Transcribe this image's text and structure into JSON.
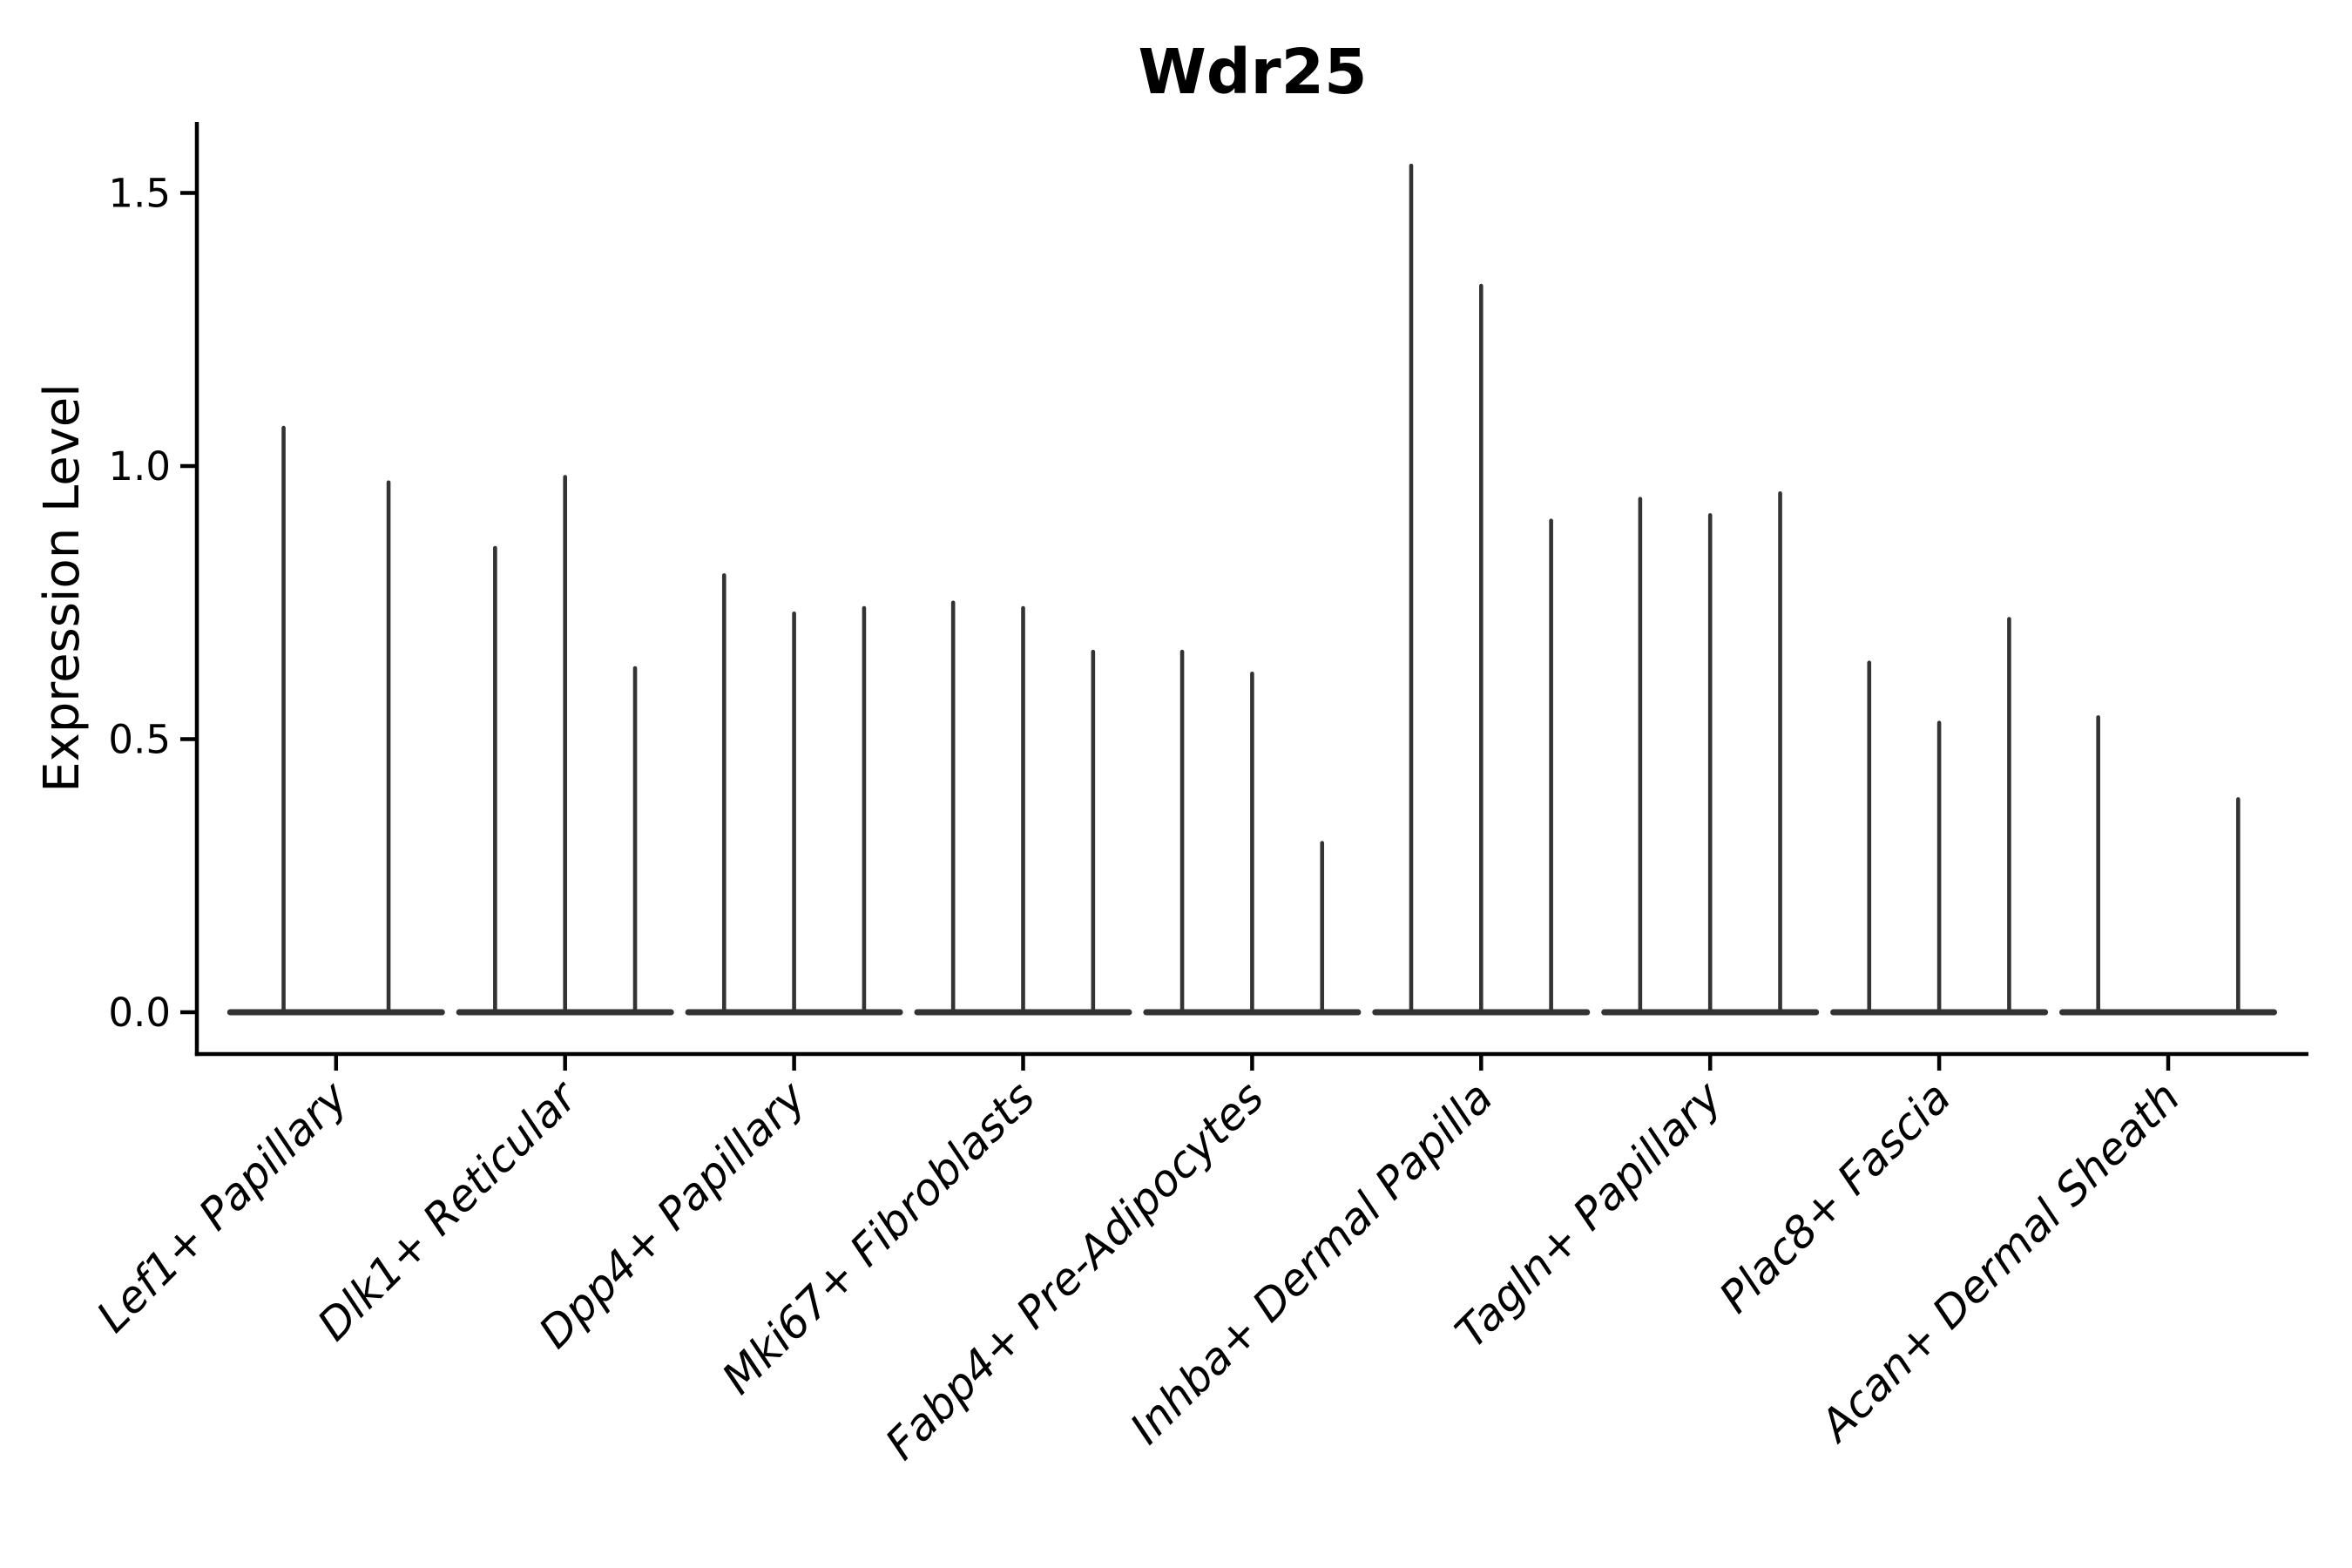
{
  "page": {
    "background": "#ffffff"
  },
  "chart_data": {
    "type": "violin",
    "title": "Wdr25",
    "xlabel": "",
    "ylabel": "Expression Level",
    "yticks": [
      "0.0",
      "0.5",
      "1.0",
      "1.5"
    ],
    "ytick_values": [
      0.0,
      0.5,
      1.0,
      1.5
    ],
    "ylim": [
      -0.08,
      1.63
    ],
    "grid": false,
    "legend_position": "none",
    "background_color": "#ffffff",
    "text_color": "#000000",
    "axis_color": "#000000",
    "violin_color": "#333333",
    "categories": [
      "Lef1+ Papillary",
      "Dlk1+ Reticular",
      "Dpp4+ Papillary",
      "Mki67+ Fibroblasts",
      "Fabp4+ Pre-Adipocytes",
      "Inhba+ Dermal Papilla",
      "Tagln+ Papillary",
      "Plac8+ Fascia",
      "Acan+ Dermal Sheath"
    ],
    "groups": [
      {
        "category": "Lef1+ Papillary",
        "slots": 2,
        "violins": [
          {
            "slot": 0,
            "peak": 1.07
          },
          {
            "slot": 1,
            "peak": 0.97
          }
        ]
      },
      {
        "category": "Dlk1+ Reticular",
        "slots": 3,
        "violins": [
          {
            "slot": 0,
            "peak": 0.85
          },
          {
            "slot": 1,
            "peak": 0.98
          },
          {
            "slot": 2,
            "peak": 0.63
          }
        ]
      },
      {
        "category": "Dpp4+ Papillary",
        "slots": 3,
        "violins": [
          {
            "slot": 0,
            "peak": 0.8
          },
          {
            "slot": 1,
            "peak": 0.73
          },
          {
            "slot": 2,
            "peak": 0.74
          }
        ]
      },
      {
        "category": "Mki67+ Fibroblasts",
        "slots": 3,
        "violins": [
          {
            "slot": 0,
            "peak": 0.75
          },
          {
            "slot": 1,
            "peak": 0.74
          },
          {
            "slot": 2,
            "peak": 0.66
          }
        ]
      },
      {
        "category": "Fabp4+ Pre-Adipocytes",
        "slots": 3,
        "violins": [
          {
            "slot": 0,
            "peak": 0.66
          },
          {
            "slot": 1,
            "peak": 0.62
          },
          {
            "slot": 2,
            "peak": 0.31
          }
        ]
      },
      {
        "category": "Inhba+ Dermal Papilla",
        "slots": 3,
        "violins": [
          {
            "slot": 0,
            "peak": 1.55
          },
          {
            "slot": 1,
            "peak": 1.33
          },
          {
            "slot": 2,
            "peak": 0.9
          }
        ]
      },
      {
        "category": "Tagln+ Papillary",
        "slots": 3,
        "violins": [
          {
            "slot": 0,
            "peak": 0.94
          },
          {
            "slot": 1,
            "peak": 0.91
          },
          {
            "slot": 2,
            "peak": 0.95
          }
        ]
      },
      {
        "category": "Plac8+ Fascia",
        "slots": 3,
        "violins": [
          {
            "slot": 0,
            "peak": 0.64
          },
          {
            "slot": 1,
            "peak": 0.53
          },
          {
            "slot": 2,
            "peak": 0.72
          }
        ]
      },
      {
        "category": "Acan+ Dermal Sheath",
        "slots": 3,
        "violins": [
          {
            "slot": 0,
            "peak": 0.54
          },
          {
            "slot": 2,
            "peak": 0.39
          }
        ]
      }
    ]
  }
}
